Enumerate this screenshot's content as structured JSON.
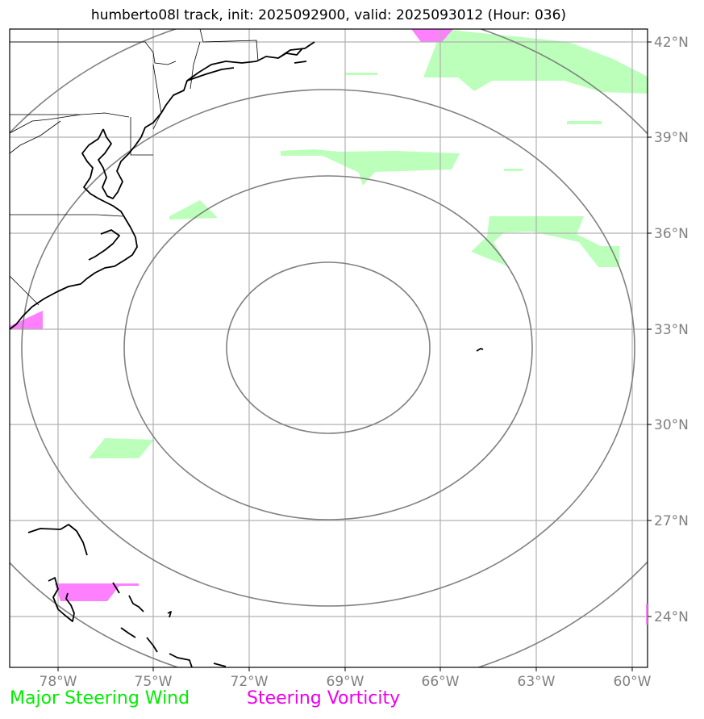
{
  "title": "humberto08l track, init: 2025092900, valid: 2025093012 (Hour: 036)",
  "map": {
    "lon_range": [
      -79.5,
      -59.5
    ],
    "lat_range": [
      22.5,
      42.5
    ],
    "lon_ticks": [
      {
        "value": -78,
        "label": "78°W"
      },
      {
        "value": -75,
        "label": "75°W"
      },
      {
        "value": -72,
        "label": "72°W"
      },
      {
        "value": -69,
        "label": "69°W"
      },
      {
        "value": -66,
        "label": "66°W"
      },
      {
        "value": -63,
        "label": "63°W"
      },
      {
        "value": -60,
        "label": "60°W"
      }
    ],
    "lat_ticks": [
      {
        "value": 42,
        "label": "42°N"
      },
      {
        "value": 39,
        "label": "39°N"
      },
      {
        "value": 36,
        "label": "36°N"
      },
      {
        "value": 33,
        "label": "33°N"
      },
      {
        "value": 30,
        "label": "30°N"
      },
      {
        "value": 27,
        "label": "27°N"
      },
      {
        "value": 24,
        "label": "24°N"
      }
    ],
    "range_rings_center": {
      "lon": -69.5,
      "lat": 32.5
    },
    "range_rings_radius_deg": [
      2.7,
      5.4,
      8.1,
      10.8
    ],
    "colors": {
      "steering_wind": "#bbffbb",
      "steering_vorticity": "#ff80ff",
      "grid": "#b0b0b0",
      "ring": "#808080",
      "coast": "#000000"
    }
  },
  "legend": {
    "wind_label": "Major Steering Wind",
    "wind_color": "#00ee00",
    "vorticity_label": "Steering Vorticity",
    "vorticity_color": "#ee00ee"
  }
}
